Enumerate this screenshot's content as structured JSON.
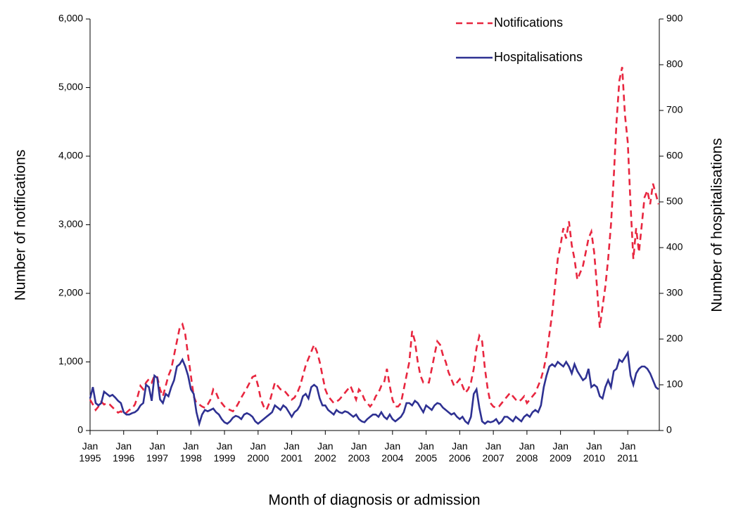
{
  "chart_data": {
    "type": "line",
    "x_label": "Month of diagnosis or admission",
    "y_label": "Number of notifications",
    "y2_label": "Number of hospitalisations",
    "categories": [
      "Jan\n1995",
      null,
      null,
      null,
      null,
      null,
      null,
      null,
      null,
      null,
      null,
      null,
      "Jan\n1996",
      null,
      null,
      null,
      null,
      null,
      null,
      null,
      null,
      null,
      null,
      null,
      "Jan\n1997",
      null,
      null,
      null,
      null,
      null,
      null,
      null,
      null,
      null,
      null,
      null,
      "Jan\n1998",
      null,
      null,
      null,
      null,
      null,
      null,
      null,
      null,
      null,
      null,
      null,
      "Jan\n1999",
      null,
      null,
      null,
      null,
      null,
      null,
      null,
      null,
      null,
      null,
      null,
      "Jan\n2000",
      null,
      null,
      null,
      null,
      null,
      null,
      null,
      null,
      null,
      null,
      null,
      "Jan\n2001",
      null,
      null,
      null,
      null,
      null,
      null,
      null,
      null,
      null,
      null,
      null,
      "Jan\n2002",
      null,
      null,
      null,
      null,
      null,
      null,
      null,
      null,
      null,
      null,
      null,
      "Jan\n2003",
      null,
      null,
      null,
      null,
      null,
      null,
      null,
      null,
      null,
      null,
      null,
      "Jan\n2004",
      null,
      null,
      null,
      null,
      null,
      null,
      null,
      null,
      null,
      null,
      null,
      "Jan\n2005",
      null,
      null,
      null,
      null,
      null,
      null,
      null,
      null,
      null,
      null,
      null,
      "Jan\n2006",
      null,
      null,
      null,
      null,
      null,
      null,
      null,
      null,
      null,
      null,
      null,
      "Jan\n2007",
      null,
      null,
      null,
      null,
      null,
      null,
      null,
      null,
      null,
      null,
      null,
      "Jan\n2008",
      null,
      null,
      null,
      null,
      null,
      null,
      null,
      null,
      null,
      null,
      null,
      "Jan\n2009",
      null,
      null,
      null,
      null,
      null,
      null,
      null,
      null,
      null,
      null,
      null,
      "Jan\n2010",
      null,
      null,
      null,
      null,
      null,
      null,
      null,
      null,
      null,
      null,
      null,
      "Jan\n2011",
      null,
      null,
      null,
      null,
      null,
      null,
      null,
      null,
      null,
      null,
      null
    ],
    "series": [
      {
        "name": "Notifications",
        "color": "#e8263f",
        "dash": true,
        "axis": "y",
        "values": [
          450,
          380,
          300,
          350,
          420,
          380,
          400,
          380,
          340,
          300,
          260,
          280,
          240,
          260,
          300,
          320,
          380,
          500,
          650,
          600,
          700,
          750,
          700,
          800,
          780,
          600,
          500,
          650,
          800,
          900,
          1100,
          1300,
          1500,
          1550,
          1400,
          1100,
          800,
          500,
          400,
          380,
          350,
          330,
          380,
          450,
          600,
          550,
          450,
          400,
          350,
          320,
          300,
          280,
          330,
          400,
          480,
          550,
          620,
          700,
          780,
          800,
          650,
          450,
          350,
          300,
          400,
          550,
          700,
          650,
          600,
          600,
          550,
          500,
          450,
          480,
          550,
          650,
          800,
          950,
          1050,
          1150,
          1250,
          1150,
          1000,
          800,
          600,
          500,
          450,
          400,
          420,
          450,
          500,
          550,
          600,
          650,
          550,
          450,
          600,
          550,
          450,
          400,
          350,
          400,
          500,
          550,
          650,
          700,
          900,
          650,
          450,
          350,
          350,
          400,
          600,
          800,
          1000,
          1450,
          1300,
          1000,
          800,
          700,
          700,
          700,
          900,
          1100,
          1300,
          1250,
          1100,
          1000,
          850,
          750,
          650,
          700,
          750,
          650,
          550,
          600,
          700,
          900,
          1200,
          1380,
          1300,
          900,
          600,
          400,
          350,
          330,
          350,
          400,
          450,
          500,
          550,
          500,
          450,
          420,
          450,
          500,
          400,
          450,
          500,
          550,
          650,
          750,
          900,
          1100,
          1400,
          1700,
          2100,
          2500,
          2700,
          2950,
          2800,
          3050,
          2700,
          2500,
          2200,
          2300,
          2400,
          2600,
          2800,
          2900,
          2600,
          2100,
          1500,
          1800,
          2100,
          2500,
          3000,
          3700,
          4500,
          5100,
          5300,
          4600,
          4200,
          3300,
          2500,
          2950,
          2600,
          3000,
          3400,
          3500,
          3300,
          3600,
          3450,
          3300
        ]
      },
      {
        "name": "Hospitalisations",
        "color": "#2e3192",
        "dash": false,
        "axis": "y2",
        "values": [
          70,
          95,
          60,
          55,
          60,
          85,
          80,
          75,
          78,
          72,
          65,
          60,
          40,
          35,
          35,
          38,
          40,
          45,
          55,
          60,
          100,
          95,
          65,
          120,
          115,
          68,
          60,
          80,
          75,
          95,
          110,
          140,
          145,
          155,
          140,
          120,
          90,
          80,
          40,
          15,
          35,
          45,
          42,
          45,
          48,
          40,
          35,
          25,
          18,
          15,
          20,
          28,
          32,
          30,
          25,
          35,
          38,
          35,
          30,
          20,
          15,
          20,
          25,
          30,
          35,
          40,
          55,
          50,
          45,
          55,
          50,
          40,
          30,
          40,
          45,
          55,
          75,
          80,
          70,
          95,
          100,
          95,
          70,
          55,
          55,
          45,
          40,
          35,
          45,
          40,
          38,
          42,
          40,
          35,
          30,
          35,
          25,
          20,
          18,
          25,
          30,
          35,
          35,
          30,
          40,
          30,
          25,
          35,
          25,
          20,
          25,
          30,
          40,
          60,
          60,
          55,
          65,
          60,
          50,
          40,
          55,
          50,
          45,
          55,
          60,
          58,
          50,
          45,
          40,
          35,
          38,
          30,
          25,
          30,
          20,
          15,
          30,
          80,
          90,
          50,
          20,
          15,
          20,
          18,
          20,
          25,
          15,
          20,
          30,
          30,
          25,
          20,
          30,
          25,
          20,
          30,
          35,
          30,
          40,
          45,
          40,
          55,
          95,
          120,
          140,
          145,
          140,
          150,
          145,
          140,
          150,
          140,
          125,
          145,
          130,
          120,
          110,
          115,
          135,
          95,
          100,
          95,
          75,
          70,
          95,
          110,
          95,
          130,
          135,
          155,
          150,
          160,
          170,
          120,
          100,
          125,
          135,
          140,
          140,
          135,
          125,
          110,
          95,
          90
        ]
      }
    ],
    "ylim": [
      0,
      6000
    ],
    "yticks": [
      0,
      {
        "value": 1000,
        "label": "1,000"
      },
      {
        "value": 2000,
        "label": "2,000"
      },
      {
        "value": 3000,
        "label": "3,000"
      },
      {
        "value": 4000,
        "label": "4,000"
      },
      {
        "value": 5000,
        "label": "5,000"
      },
      {
        "value": 6000,
        "label": "6,000"
      }
    ],
    "y2lim": [
      0,
      900
    ],
    "y2ticks": [
      0,
      100,
      200,
      300,
      400,
      500,
      600,
      700,
      800,
      900
    ],
    "grid": false
  }
}
